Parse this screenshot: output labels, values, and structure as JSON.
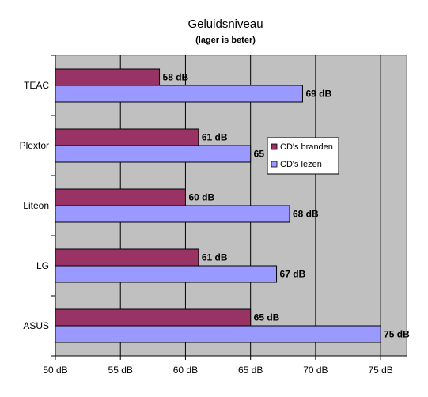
{
  "chart_data": {
    "type": "bar",
    "orientation": "horizontal",
    "title": "Geluidsniveau",
    "subtitle": "(lager is beter)",
    "categories": [
      "TEAC",
      "Plextor",
      "Liteon",
      "LG",
      "ASUS"
    ],
    "series": [
      {
        "name": "CD's branden",
        "values": [
          58,
          61,
          60,
          61,
          65
        ],
        "labels": [
          "58 dB",
          "61 dB",
          "60 dB",
          "61 dB",
          "65 dB"
        ],
        "color": "#993366"
      },
      {
        "name": "CD's lezen",
        "values": [
          69,
          65,
          68,
          67,
          75
        ],
        "labels": [
          "69 dB",
          "65",
          "68 dB",
          "67 dB",
          "75 dB"
        ],
        "color": "#9999ff"
      }
    ],
    "xlim": [
      50,
      77
    ],
    "x_ticks": [
      50,
      55,
      60,
      65,
      70,
      75
    ],
    "x_tick_labels": [
      "50 dB",
      "55 dB",
      "60 dB",
      "65 dB",
      "70 dB",
      "75 dB"
    ],
    "grid": true,
    "plot_background": "#c0c0c0",
    "legend_position": "right-middle"
  }
}
